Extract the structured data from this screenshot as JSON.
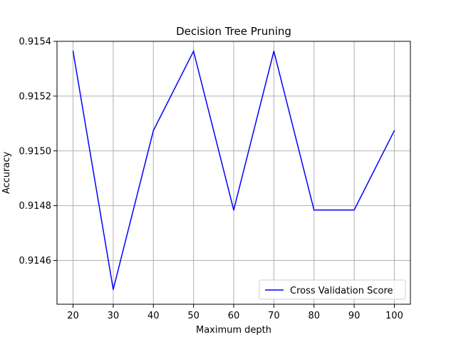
{
  "chart_data": {
    "type": "line",
    "title": "Decision Tree Pruning",
    "xlabel": "Maximum depth",
    "ylabel": "Accuracy",
    "x": [
      20,
      30,
      40,
      50,
      60,
      70,
      80,
      90,
      100
    ],
    "series": [
      {
        "name": "Cross Validation Score",
        "color": "#0000ff",
        "values": [
          0.915364,
          0.914494,
          0.915074,
          0.915364,
          0.914784,
          0.915364,
          0.914784,
          0.914784,
          0.915074
        ]
      }
    ],
    "xlim": [
      16,
      104
    ],
    "ylim": [
      0.91444,
      0.9154
    ],
    "xticks": [
      20,
      30,
      40,
      50,
      60,
      70,
      80,
      90,
      100
    ],
    "xtick_labels": [
      "20",
      "30",
      "40",
      "50",
      "60",
      "70",
      "80",
      "90",
      "100"
    ],
    "yticks": [
      0.9146,
      0.9148,
      0.915,
      0.9152,
      0.9154
    ],
    "ytick_labels": [
      "0.9146",
      "0.9148",
      "0.9150",
      "0.9152",
      "0.9154"
    ],
    "grid": true,
    "legend_position": "lower-right"
  }
}
